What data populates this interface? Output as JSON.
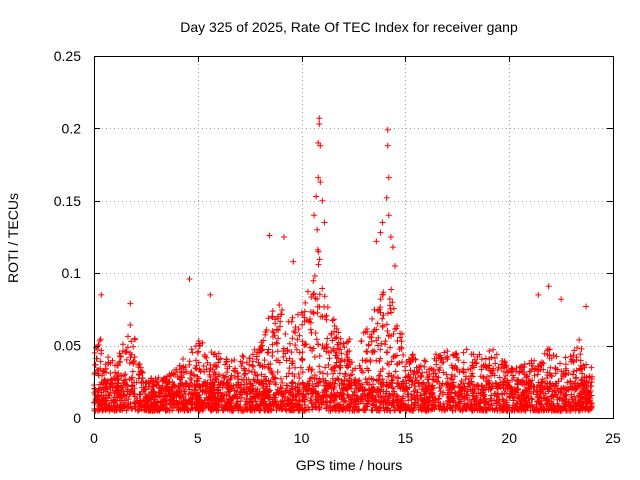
{
  "chart_data": {
    "type": "scatter",
    "title": "Day 325 of 2025, Rate Of TEC Index for receiver ganp",
    "xlabel": "GPS time / hours",
    "ylabel": "ROTI / TECUs",
    "xlim": [
      0,
      25
    ],
    "ylim": [
      0,
      0.25
    ],
    "x_ticks": [
      "0",
      "5",
      "10",
      "15",
      "20",
      "25"
    ],
    "y_ticks": [
      "0",
      "0.05",
      "0.1",
      "0.15",
      "0.2",
      "0.25"
    ],
    "x_tick_values": [
      0,
      5,
      10,
      15,
      20,
      25
    ],
    "y_tick_values": [
      0,
      0.05,
      0.1,
      0.15,
      0.2,
      0.25
    ],
    "grid": true,
    "marker": "+",
    "series": [
      {
        "name": "ROTI",
        "color": "#ff0000",
        "x_range": [
          0,
          24
        ],
        "baseline_low": 0.005,
        "envelope": [
          [
            0.0,
            0.045
          ],
          [
            0.3,
            0.06
          ],
          [
            0.5,
            0.035
          ],
          [
            0.7,
            0.045
          ],
          [
            1.0,
            0.04
          ],
          [
            1.5,
            0.055
          ],
          [
            1.8,
            0.07
          ],
          [
            2.1,
            0.05
          ],
          [
            2.4,
            0.03
          ],
          [
            3.0,
            0.028
          ],
          [
            3.5,
            0.03
          ],
          [
            4.0,
            0.035
          ],
          [
            4.5,
            0.045
          ],
          [
            5.0,
            0.055
          ],
          [
            5.5,
            0.05
          ],
          [
            6.0,
            0.045
          ],
          [
            6.5,
            0.04
          ],
          [
            7.0,
            0.042
          ],
          [
            7.5,
            0.045
          ],
          [
            8.0,
            0.05
          ],
          [
            8.5,
            0.075
          ],
          [
            9.0,
            0.08
          ],
          [
            9.5,
            0.07
          ],
          [
            10.0,
            0.075
          ],
          [
            10.5,
            0.1
          ],
          [
            10.8,
            0.12
          ],
          [
            11.2,
            0.08
          ],
          [
            11.8,
            0.06
          ],
          [
            12.5,
            0.055
          ],
          [
            13.0,
            0.06
          ],
          [
            13.5,
            0.075
          ],
          [
            14.0,
            0.1
          ],
          [
            14.3,
            0.09
          ],
          [
            14.8,
            0.065
          ],
          [
            15.3,
            0.045
          ],
          [
            16.0,
            0.04
          ],
          [
            16.5,
            0.045
          ],
          [
            17.0,
            0.05
          ],
          [
            17.5,
            0.045
          ],
          [
            18.0,
            0.05
          ],
          [
            18.5,
            0.045
          ],
          [
            19.0,
            0.05
          ],
          [
            19.5,
            0.045
          ],
          [
            20.0,
            0.035
          ],
          [
            20.5,
            0.035
          ],
          [
            21.0,
            0.04
          ],
          [
            21.5,
            0.045
          ],
          [
            22.0,
            0.05
          ],
          [
            22.5,
            0.04
          ],
          [
            23.0,
            0.045
          ],
          [
            23.3,
            0.06
          ],
          [
            23.6,
            0.04
          ],
          [
            24.0,
            0.035
          ]
        ],
        "outliers": [
          [
            0.35,
            0.085
          ],
          [
            1.75,
            0.079
          ],
          [
            4.6,
            0.096
          ],
          [
            5.6,
            0.085
          ],
          [
            8.45,
            0.126
          ],
          [
            9.15,
            0.125
          ],
          [
            9.6,
            0.108
          ],
          [
            10.85,
            0.207
          ],
          [
            10.85,
            0.203
          ],
          [
            10.8,
            0.19
          ],
          [
            10.9,
            0.188
          ],
          [
            10.8,
            0.166
          ],
          [
            10.9,
            0.163
          ],
          [
            10.7,
            0.153
          ],
          [
            11.0,
            0.15
          ],
          [
            10.6,
            0.14
          ],
          [
            11.1,
            0.135
          ],
          [
            10.75,
            0.13
          ],
          [
            14.15,
            0.199
          ],
          [
            14.15,
            0.188
          ],
          [
            14.2,
            0.166
          ],
          [
            14.1,
            0.152
          ],
          [
            14.2,
            0.14
          ],
          [
            13.9,
            0.135
          ],
          [
            13.8,
            0.128
          ],
          [
            14.3,
            0.125
          ],
          [
            13.6,
            0.122
          ],
          [
            14.4,
            0.118
          ],
          [
            14.5,
            0.105
          ],
          [
            21.9,
            0.091
          ],
          [
            21.4,
            0.085
          ],
          [
            22.5,
            0.082
          ],
          [
            23.7,
            0.077
          ]
        ]
      }
    ]
  }
}
